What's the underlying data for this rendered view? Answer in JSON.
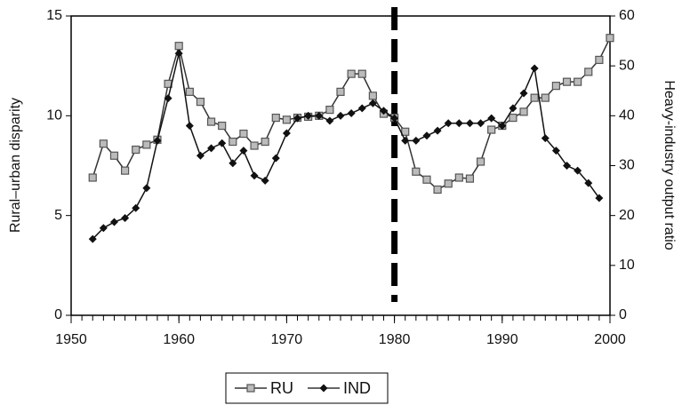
{
  "chart_data": {
    "type": "line",
    "x": [
      1952,
      1953,
      1954,
      1955,
      1956,
      1957,
      1958,
      1959,
      1960,
      1961,
      1962,
      1963,
      1964,
      1965,
      1966,
      1967,
      1968,
      1969,
      1970,
      1971,
      1972,
      1973,
      1974,
      1975,
      1976,
      1977,
      1978,
      1979,
      1980,
      1981,
      1982,
      1983,
      1984,
      1985,
      1986,
      1987,
      1988,
      1989,
      1990,
      1991,
      1992,
      1993,
      1994,
      1995,
      1996,
      1997,
      1998,
      1999,
      2000
    ],
    "series": [
      {
        "name": "RU",
        "color": "#888888",
        "marker": "square",
        "axis": "y",
        "values": [
          6.9,
          8.6,
          8.0,
          7.25,
          8.3,
          8.55,
          8.8,
          11.6,
          13.5,
          11.2,
          10.7,
          9.7,
          9.5,
          8.7,
          9.1,
          8.5,
          8.7,
          9.9,
          9.8,
          9.9,
          9.95,
          10.0,
          10.3,
          11.2,
          12.1,
          12.1,
          11.0,
          10.1,
          9.9,
          9.2,
          7.2,
          6.8,
          6.3,
          6.6,
          6.9,
          6.85,
          7.7,
          9.3,
          9.5,
          9.9,
          10.2,
          10.9,
          10.9,
          11.5,
          11.7,
          11.7,
          12.2,
          12.8,
          13.9
        ]
      },
      {
        "name": "IND",
        "color": "#111111",
        "marker": "diamond",
        "axis": "y2",
        "values": [
          15.3,
          17.5,
          18.7,
          19.5,
          21.5,
          25.5,
          35,
          43.5,
          52.5,
          38,
          32,
          33.5,
          34.5,
          30.5,
          33,
          28,
          27,
          31.5,
          36.5,
          39.5,
          40,
          40,
          39,
          40,
          40.5,
          41.5,
          42.5,
          41,
          39.5,
          35,
          35,
          36,
          37,
          38.5,
          38.5,
          38.5,
          38.5,
          39.5,
          38,
          41.5,
          44.5,
          49.5,
          35.5,
          33,
          30,
          29,
          26.5,
          23.5,
          null
        ]
      }
    ],
    "y_label": "Rural–urban disparity",
    "y2_label": "Heavy-industry output ratio",
    "xlim": [
      1950,
      2000
    ],
    "xticks": [
      1950,
      1960,
      1970,
      1980,
      1990,
      2000
    ],
    "ylim": [
      0,
      15
    ],
    "yticks": [
      0,
      5,
      10,
      15
    ],
    "y2lim": [
      0,
      60
    ],
    "y2ticks": [
      0,
      10,
      20,
      30,
      40,
      50,
      60
    ],
    "vline": 1980,
    "grid": false,
    "legend": "bottom"
  }
}
